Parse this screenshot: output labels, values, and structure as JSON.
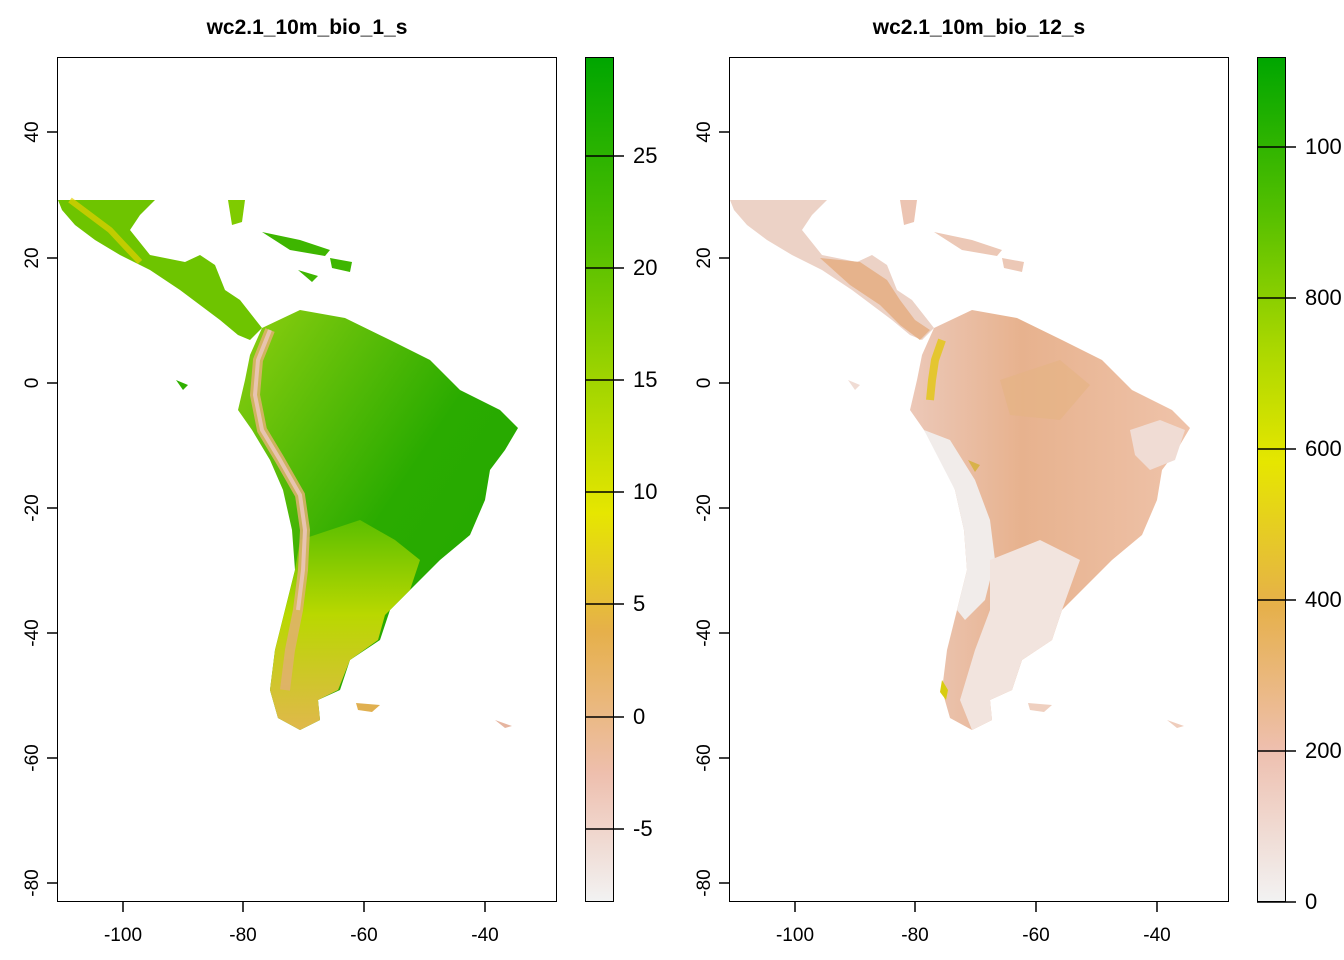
{
  "chart_data": [
    {
      "type": "heatmap",
      "title": "wc2.1_10m_bio_1_s",
      "xlabel": "",
      "ylabel": "",
      "x_ticks": [
        "-100",
        "-80",
        "-60",
        "-40"
      ],
      "y_ticks": [
        "40",
        "20",
        "0",
        "-20",
        "-40",
        "-60",
        "-80"
      ],
      "xlim": [
        -111,
        -28
      ],
      "ylim": [
        -83,
        52
      ],
      "legend": {
        "ticks": [
          "25",
          "20",
          "15",
          "10",
          "5",
          "0",
          "-5"
        ],
        "range": [
          -8.5,
          29
        ],
        "colors": [
          "#f2f2f2",
          "#eeb99f",
          "#e6b04a",
          "#e6e600",
          "#a8d700",
          "#53bf00",
          "#00a600"
        ]
      }
    },
    {
      "type": "heatmap",
      "title": "wc2.1_10m_bio_12_s",
      "xlabel": "",
      "ylabel": "",
      "x_ticks": [
        "-100",
        "-80",
        "-60",
        "-40"
      ],
      "y_ticks": [
        "40",
        "20",
        "0",
        "-20",
        "-40",
        "-60",
        "-80"
      ],
      "xlim": [
        -111,
        -28
      ],
      "ylim": [
        -83,
        52
      ],
      "legend": {
        "ticks": [
          "100",
          "800",
          "600",
          "400",
          "200",
          "0"
        ],
        "range": [
          0,
          1120
        ],
        "colors": [
          "#f2f2f2",
          "#eeb99f",
          "#e6b04a",
          "#e6e600",
          "#a8d700",
          "#53bf00",
          "#00a600"
        ]
      }
    }
  ]
}
